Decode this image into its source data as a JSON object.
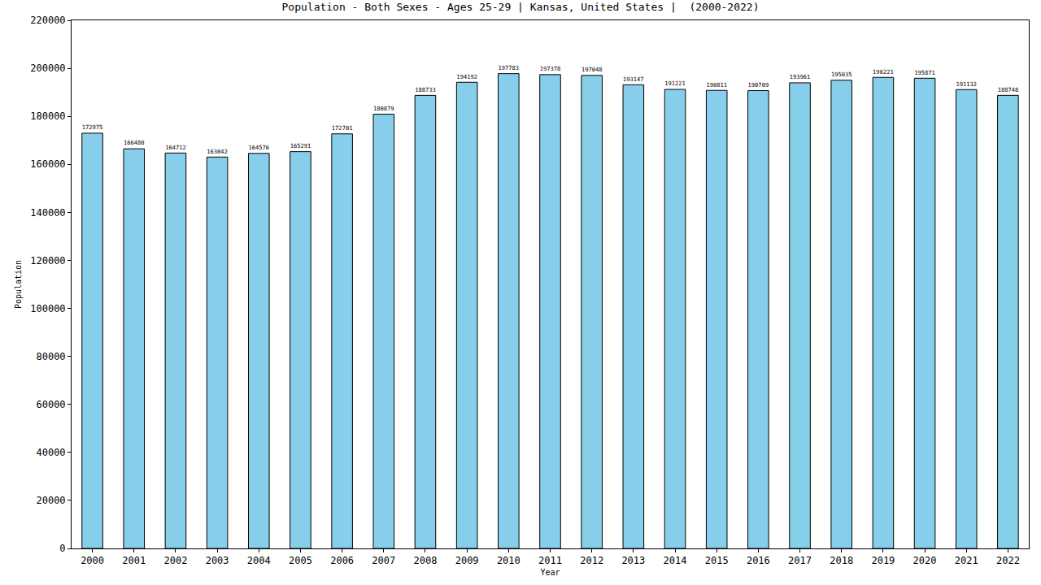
{
  "chart_data": {
    "type": "bar",
    "title": "Population - Both Sexes - Ages 25-29 | Kansas, United States |  (2000-2022)",
    "x_label": "Year",
    "y_label": "Population",
    "categories": [
      "2000",
      "2001",
      "2002",
      "2003",
      "2004",
      "2005",
      "2006",
      "2007",
      "2008",
      "2009",
      "2010",
      "2011",
      "2012",
      "2013",
      "2014",
      "2015",
      "2016",
      "2017",
      "2018",
      "2019",
      "2020",
      "2021",
      "2022"
    ],
    "values": [
      172975,
      166480,
      164712,
      163042,
      164576,
      165291,
      172701,
      180879,
      188733,
      194192,
      197783,
      197378,
      197048,
      193147,
      191221,
      190811,
      190709,
      193961,
      195035,
      196221,
      195871,
      191132,
      188748
    ],
    "color": "#87ceeb",
    "ylim": [
      0,
      220000
    ],
    "yticks": [
      0,
      20000,
      40000,
      60000,
      80000,
      100000,
      120000,
      140000,
      160000,
      180000,
      200000,
      220000
    ],
    "grid": false,
    "data_labels": true
  }
}
